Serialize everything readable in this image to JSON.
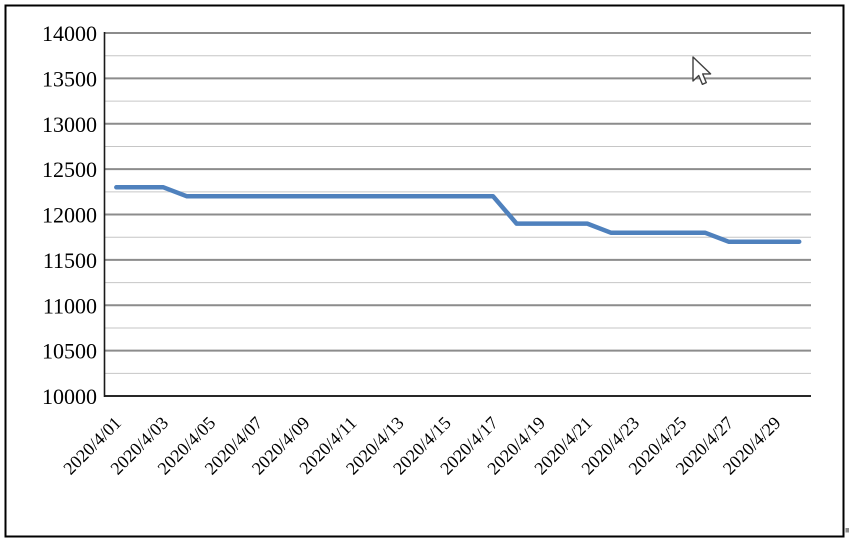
{
  "chart_data": {
    "type": "line",
    "title": "",
    "xlabel": "",
    "ylabel": "",
    "x": [
      "2020/4/01",
      "2020/4/02",
      "2020/4/03",
      "2020/4/04",
      "2020/4/05",
      "2020/4/06",
      "2020/4/07",
      "2020/4/08",
      "2020/4/09",
      "2020/4/10",
      "2020/4/11",
      "2020/4/12",
      "2020/4/13",
      "2020/4/14",
      "2020/4/15",
      "2020/4/16",
      "2020/4/17",
      "2020/4/18",
      "2020/4/19",
      "2020/4/20",
      "2020/4/21",
      "2020/4/22",
      "2020/4/23",
      "2020/4/24",
      "2020/4/25",
      "2020/4/26",
      "2020/4/27",
      "2020/4/28",
      "2020/4/29",
      "2020/4/30"
    ],
    "series": [
      {
        "values": [
          12300,
          12300,
          12300,
          12200,
          12200,
          12200,
          12200,
          12200,
          12200,
          12200,
          12200,
          12200,
          12200,
          12200,
          12200,
          12200,
          12200,
          11900,
          11900,
          11900,
          11900,
          11800,
          11800,
          11800,
          11800,
          11800,
          11700,
          11700,
          11700,
          11700
        ]
      }
    ],
    "x_tick_labels": [
      "2020/4/01",
      "2020/4/03",
      "2020/4/05",
      "2020/4/07",
      "2020/4/09",
      "2020/4/11",
      "2020/4/13",
      "2020/4/15",
      "2020/4/17",
      "2020/4/19",
      "2020/4/21",
      "2020/4/23",
      "2020/4/25",
      "2020/4/27",
      "2020/4/29"
    ],
    "x_tick_every": 2,
    "y_tick_labels": [
      "14000",
      "13500",
      "13000",
      "12500",
      "12000",
      "11500",
      "11000",
      "10500",
      "10000"
    ],
    "ylim": [
      10000,
      14000
    ],
    "y_major_step": 500,
    "y_minor_step": 250,
    "grid": "horizontal-major-and-minor",
    "legend": "none",
    "markers": "none",
    "x_label_rotation_deg": -45,
    "colors": {
      "line": "#4F81BD",
      "major_grid": "#8C8C8C",
      "minor_grid": "#C6C6C6",
      "axis": "#1A1A1A",
      "text": "#000000",
      "frame_border": "#000000",
      "background": "#FFFFFF",
      "artifact": "#8A8A8A"
    }
  },
  "cursor": {
    "type": "arrow-pointer"
  }
}
